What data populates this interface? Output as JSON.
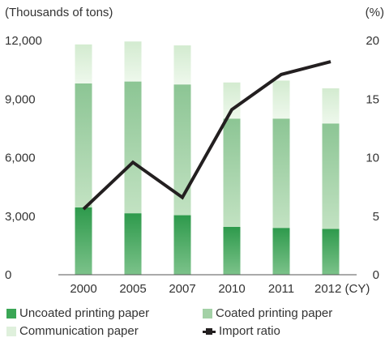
{
  "chart_data": {
    "type": "bar",
    "stacked": true,
    "y_axis_left": {
      "label": "(Thousands of tons)",
      "ticks": [
        "12,000",
        "9,000",
        "6,000",
        "3,000",
        "0"
      ],
      "tick_values": [
        12000,
        9000,
        6000,
        3000,
        0
      ],
      "ylim": [
        0,
        12000
      ]
    },
    "y_axis_right": {
      "label": "(%)",
      "ticks": [
        "20",
        "15",
        "10",
        "5",
        "0"
      ],
      "tick_values": [
        20,
        15,
        10,
        5,
        0
      ],
      "ylim": [
        0,
        20
      ]
    },
    "categories": [
      "2000",
      "2005",
      "2007",
      "2010",
      "2011",
      "2012 (CY)"
    ],
    "series": [
      {
        "name": "Uncoated printing paper",
        "kind": "bar",
        "color": "#3aa655",
        "values": [
          3450,
          3150,
          3050,
          2450,
          2400,
          2350
        ]
      },
      {
        "name": "Coated printing paper",
        "kind": "bar",
        "color": "#a3d1a6",
        "values": [
          6350,
          6750,
          6700,
          5550,
          5600,
          5400
        ]
      },
      {
        "name": "Communication paper",
        "kind": "bar",
        "color": "#dff0dc",
        "values": [
          2000,
          2050,
          2000,
          1850,
          1950,
          1800
        ]
      },
      {
        "name": "Import ratio",
        "kind": "line",
        "axis": "right",
        "color": "#231f20",
        "values": [
          5.6,
          9.6,
          6.6,
          14.1,
          17.1,
          18.2
        ]
      }
    ],
    "grid": false,
    "legend_position": "bottom"
  },
  "legend": [
    {
      "label": "Uncoated printing paper",
      "key": "swatch",
      "color": "#3aa655"
    },
    {
      "label": "Coated printing paper",
      "key": "swatch",
      "color": "#a3d1a6"
    },
    {
      "label": "Communication paper",
      "key": "swatch",
      "color": "#dff0dc"
    },
    {
      "label": "Import ratio",
      "key": "line",
      "color": "#231f20"
    }
  ]
}
